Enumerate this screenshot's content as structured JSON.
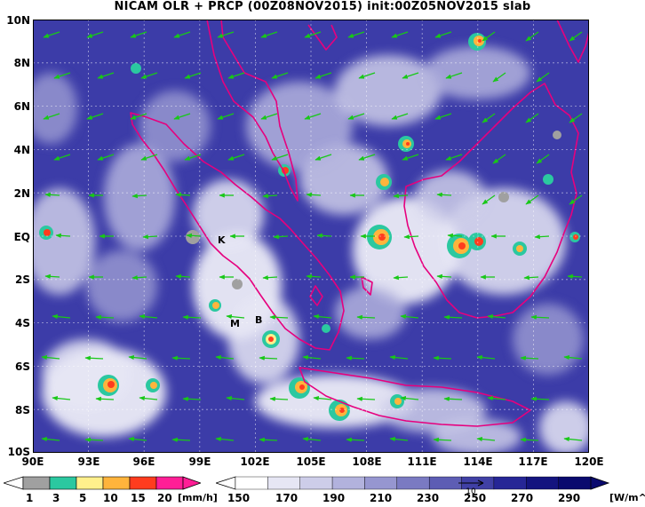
{
  "title": "NICAM OLR + PRCP (00Z08NOV2015) init:00Z05NOV2015 slab",
  "y_axis_labels": [
    "10N",
    "8N",
    "6N",
    "4N",
    "2N",
    "EQ",
    "2S",
    "4S",
    "6S",
    "8S",
    "10S"
  ],
  "x_axis_labels": [
    "90E",
    "93E",
    "96E",
    "99E",
    "102E",
    "105E",
    "108E",
    "111E",
    "114E",
    "117E",
    "120E"
  ],
  "place_labels": [
    "K",
    "M",
    "B"
  ],
  "precip_colorbar": {
    "labels": [
      "1",
      "3",
      "5",
      "10",
      "15",
      "20"
    ],
    "unit": "[mm/h]",
    "colors": [
      "#a0a0a0",
      "#2bc8a0",
      "#fff08c",
      "#ffb43c",
      "#ff3c1e",
      "#ff1e96"
    ]
  },
  "olr_colorbar": {
    "labels": [
      "150",
      "170",
      "190",
      "210",
      "230",
      "250",
      "270",
      "290"
    ],
    "unit": "[W/m^2]",
    "colors": [
      "#ffffff",
      "#e6e6f4",
      "#cdcde9",
      "#b2b2dd",
      "#9696d0",
      "#7a7ac2",
      "#5d5db4",
      "#4040a5",
      "#262696",
      "#14147f",
      "#0a0a6e"
    ]
  },
  "colors": {
    "coastline": "#e6007e",
    "wind_vector": "#18c818",
    "ocean_low_olr": "#3c3ca8"
  },
  "legend_ref_vector": "10"
}
